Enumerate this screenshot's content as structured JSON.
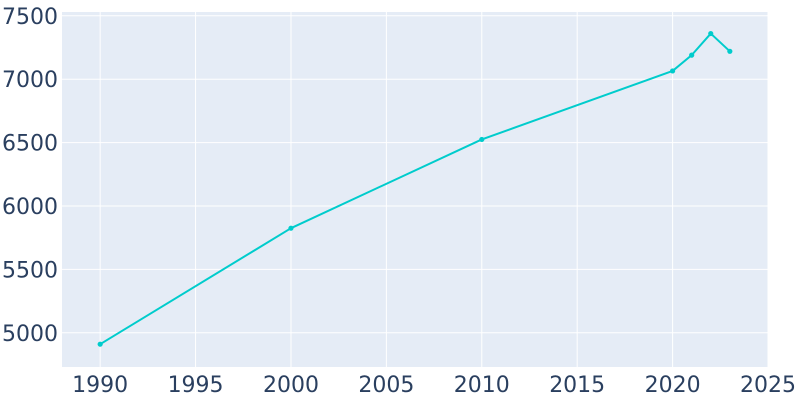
{
  "chart_data": {
    "type": "line",
    "title": "",
    "xlabel": "",
    "ylabel": "",
    "xlim": [
      1988,
      2025
    ],
    "ylim": [
      4730,
      7530
    ],
    "x_ticks": [
      1990,
      1995,
      2000,
      2005,
      2010,
      2015,
      2020,
      2025
    ],
    "y_ticks": [
      5000,
      5500,
      6000,
      6500,
      7000,
      7500
    ],
    "grid": true,
    "series": [
      {
        "x": [
          1990,
          2000,
          2010,
          2020,
          2021,
          2022,
          2023
        ],
        "y": [
          4910,
          5825,
          6525,
          7065,
          7190,
          7360,
          7220
        ]
      }
    ],
    "colors": {
      "line": "#00cccc",
      "plot_background": "#e5ecf6",
      "grid": "#ffffff",
      "tick_text": "#2a3f5f"
    }
  }
}
